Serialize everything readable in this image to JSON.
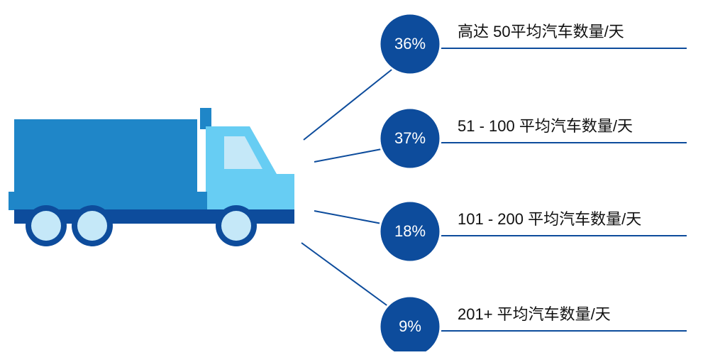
{
  "items": [
    {
      "percent": "36%",
      "label": "高达 50平均汽车数量/天"
    },
    {
      "percent": "37%",
      "label": "51 - 100 平均汽车数量/天"
    },
    {
      "percent": "18%",
      "label": "101 - 200 平均汽车数量/天"
    },
    {
      "percent": "9%",
      "label": "201+ 平均汽车数量/天"
    }
  ]
}
